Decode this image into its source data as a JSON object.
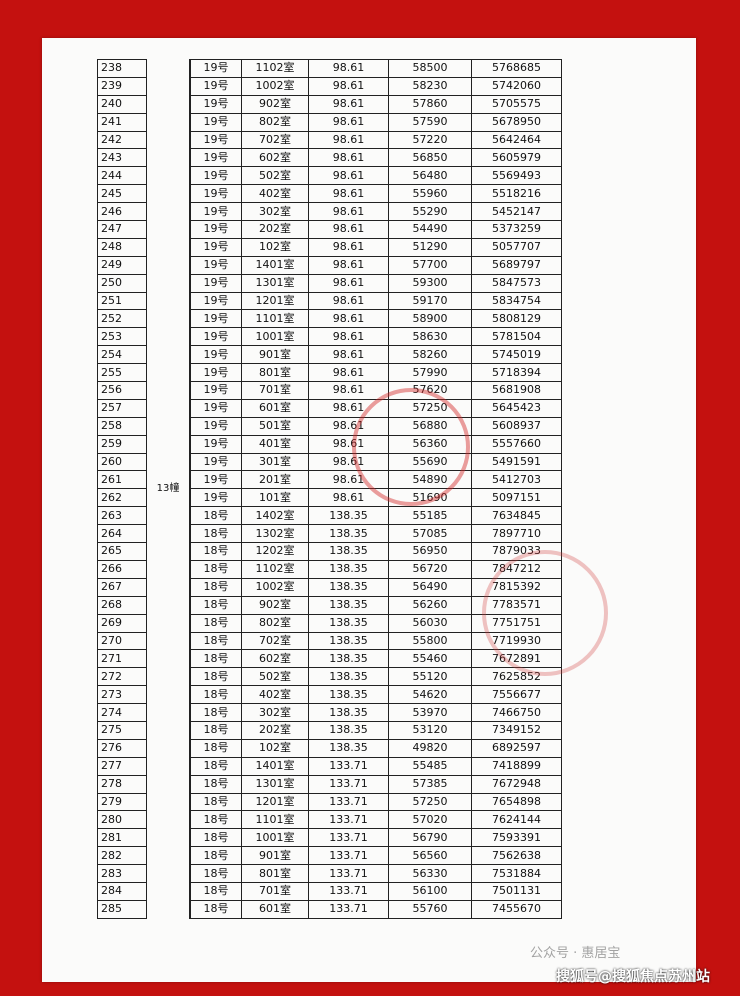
{
  "table": {
    "building": "13幢",
    "rows": [
      [
        238,
        "19号",
        "1102室",
        98.61,
        58500,
        5768685
      ],
      [
        239,
        "19号",
        "1002室",
        98.61,
        58230,
        5742060
      ],
      [
        240,
        "19号",
        "902室",
        98.61,
        57860,
        5705575
      ],
      [
        241,
        "19号",
        "802室",
        98.61,
        57590,
        5678950
      ],
      [
        242,
        "19号",
        "702室",
        98.61,
        57220,
        5642464
      ],
      [
        243,
        "19号",
        "602室",
        98.61,
        56850,
        5605979
      ],
      [
        244,
        "19号",
        "502室",
        98.61,
        56480,
        5569493
      ],
      [
        245,
        "19号",
        "402室",
        98.61,
        55960,
        5518216
      ],
      [
        246,
        "19号",
        "302室",
        98.61,
        55290,
        5452147
      ],
      [
        247,
        "19号",
        "202室",
        98.61,
        54490,
        5373259
      ],
      [
        248,
        "19号",
        "102室",
        98.61,
        51290,
        5057707
      ],
      [
        249,
        "19号",
        "1401室",
        98.61,
        57700,
        5689797
      ],
      [
        250,
        "19号",
        "1301室",
        98.61,
        59300,
        5847573
      ],
      [
        251,
        "19号",
        "1201室",
        98.61,
        59170,
        5834754
      ],
      [
        252,
        "19号",
        "1101室",
        98.61,
        58900,
        5808129
      ],
      [
        253,
        "19号",
        "1001室",
        98.61,
        58630,
        5781504
      ],
      [
        254,
        "19号",
        "901室",
        98.61,
        58260,
        5745019
      ],
      [
        255,
        "19号",
        "801室",
        98.61,
        57990,
        5718394
      ],
      [
        256,
        "19号",
        "701室",
        98.61,
        57620,
        5681908
      ],
      [
        257,
        "19号",
        "601室",
        98.61,
        57250,
        5645423
      ],
      [
        258,
        "19号",
        "501室",
        98.61,
        56880,
        5608937
      ],
      [
        259,
        "19号",
        "401室",
        98.61,
        56360,
        5557660
      ],
      [
        260,
        "19号",
        "301室",
        98.61,
        55690,
        5491591
      ],
      [
        261,
        "19号",
        "201室",
        98.61,
        54890,
        5412703
      ],
      [
        262,
        "19号",
        "101室",
        98.61,
        51690,
        5097151
      ],
      [
        263,
        "18号",
        "1402室",
        138.35,
        55185,
        7634845
      ],
      [
        264,
        "18号",
        "1302室",
        138.35,
        57085,
        7897710
      ],
      [
        265,
        "18号",
        "1202室",
        138.35,
        56950,
        7879033
      ],
      [
        266,
        "18号",
        "1102室",
        138.35,
        56720,
        7847212
      ],
      [
        267,
        "18号",
        "1002室",
        138.35,
        56490,
        7815392
      ],
      [
        268,
        "18号",
        "902室",
        138.35,
        56260,
        7783571
      ],
      [
        269,
        "18号",
        "802室",
        138.35,
        56030,
        7751751
      ],
      [
        270,
        "18号",
        "702室",
        138.35,
        55800,
        7719930
      ],
      [
        271,
        "18号",
        "602室",
        138.35,
        55460,
        7672891
      ],
      [
        272,
        "18号",
        "502室",
        138.35,
        55120,
        7625852
      ],
      [
        273,
        "18号",
        "402室",
        138.35,
        54620,
        7556677
      ],
      [
        274,
        "18号",
        "302室",
        138.35,
        53970,
        7466750
      ],
      [
        275,
        "18号",
        "202室",
        138.35,
        53120,
        7349152
      ],
      [
        276,
        "18号",
        "102室",
        138.35,
        49820,
        6892597
      ],
      [
        277,
        "18号",
        "1401室",
        133.71,
        55485,
        7418899
      ],
      [
        278,
        "18号",
        "1301室",
        133.71,
        57385,
        7672948
      ],
      [
        279,
        "18号",
        "1201室",
        133.71,
        57250,
        7654898
      ],
      [
        280,
        "18号",
        "1101室",
        133.71,
        57020,
        7624144
      ],
      [
        281,
        "18号",
        "1001室",
        133.71,
        56790,
        7593391
      ],
      [
        282,
        "18号",
        "901室",
        133.71,
        56560,
        7562638
      ],
      [
        283,
        "18号",
        "801室",
        133.71,
        56330,
        7531884
      ],
      [
        284,
        "18号",
        "701室",
        133.71,
        56100,
        7501131
      ],
      [
        285,
        "18号",
        "601室",
        133.71,
        55760,
        7455670
      ]
    ]
  },
  "watermarks": [
    "公众号 · 惠居宝",
    "搜狐号@搜狐焦点苏州站"
  ]
}
